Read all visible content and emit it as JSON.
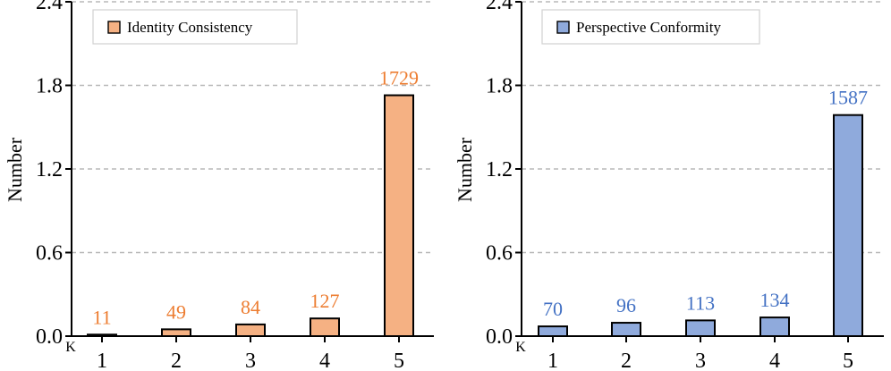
{
  "chart_data": [
    {
      "type": "bar",
      "title": "",
      "xlabel": "K",
      "ylabel": "Number",
      "categories": [
        "1",
        "2",
        "3",
        "4",
        "5"
      ],
      "values": [
        11,
        49,
        84,
        127,
        1729
      ],
      "value_labels": [
        "11",
        "49",
        "84",
        "127",
        "1729"
      ],
      "yticks": [
        0.0,
        0.6,
        1.2,
        1.8,
        2.4
      ],
      "ytick_labels": [
        "0.0",
        "0.6",
        "1.2",
        "1.8",
        "2.4"
      ],
      "ylim": [
        0,
        2.4
      ],
      "value_scale": 1000,
      "legend": "Identity Consistency",
      "legend_position": "top-left",
      "grid": "horizontal dashed",
      "bar_color": "#F5B183",
      "label_color": "#ED7D31"
    },
    {
      "type": "bar",
      "title": "",
      "xlabel": "K",
      "ylabel": "Number",
      "categories": [
        "1",
        "2",
        "3",
        "4",
        "5"
      ],
      "values": [
        70,
        96,
        113,
        134,
        1587
      ],
      "value_labels": [
        "70",
        "96",
        "113",
        "134",
        "1587"
      ],
      "yticks": [
        0.0,
        0.6,
        1.2,
        1.8,
        2.4
      ],
      "ytick_labels": [
        "0.0",
        "0.6",
        "1.2",
        "1.8",
        "2.4"
      ],
      "ylim": [
        0,
        2.4
      ],
      "value_scale": 1000,
      "legend": "Perspective Conformity",
      "legend_position": "top-left",
      "grid": "horizontal dashed",
      "bar_color": "#8FAADC",
      "label_color": "#4472C4"
    }
  ]
}
